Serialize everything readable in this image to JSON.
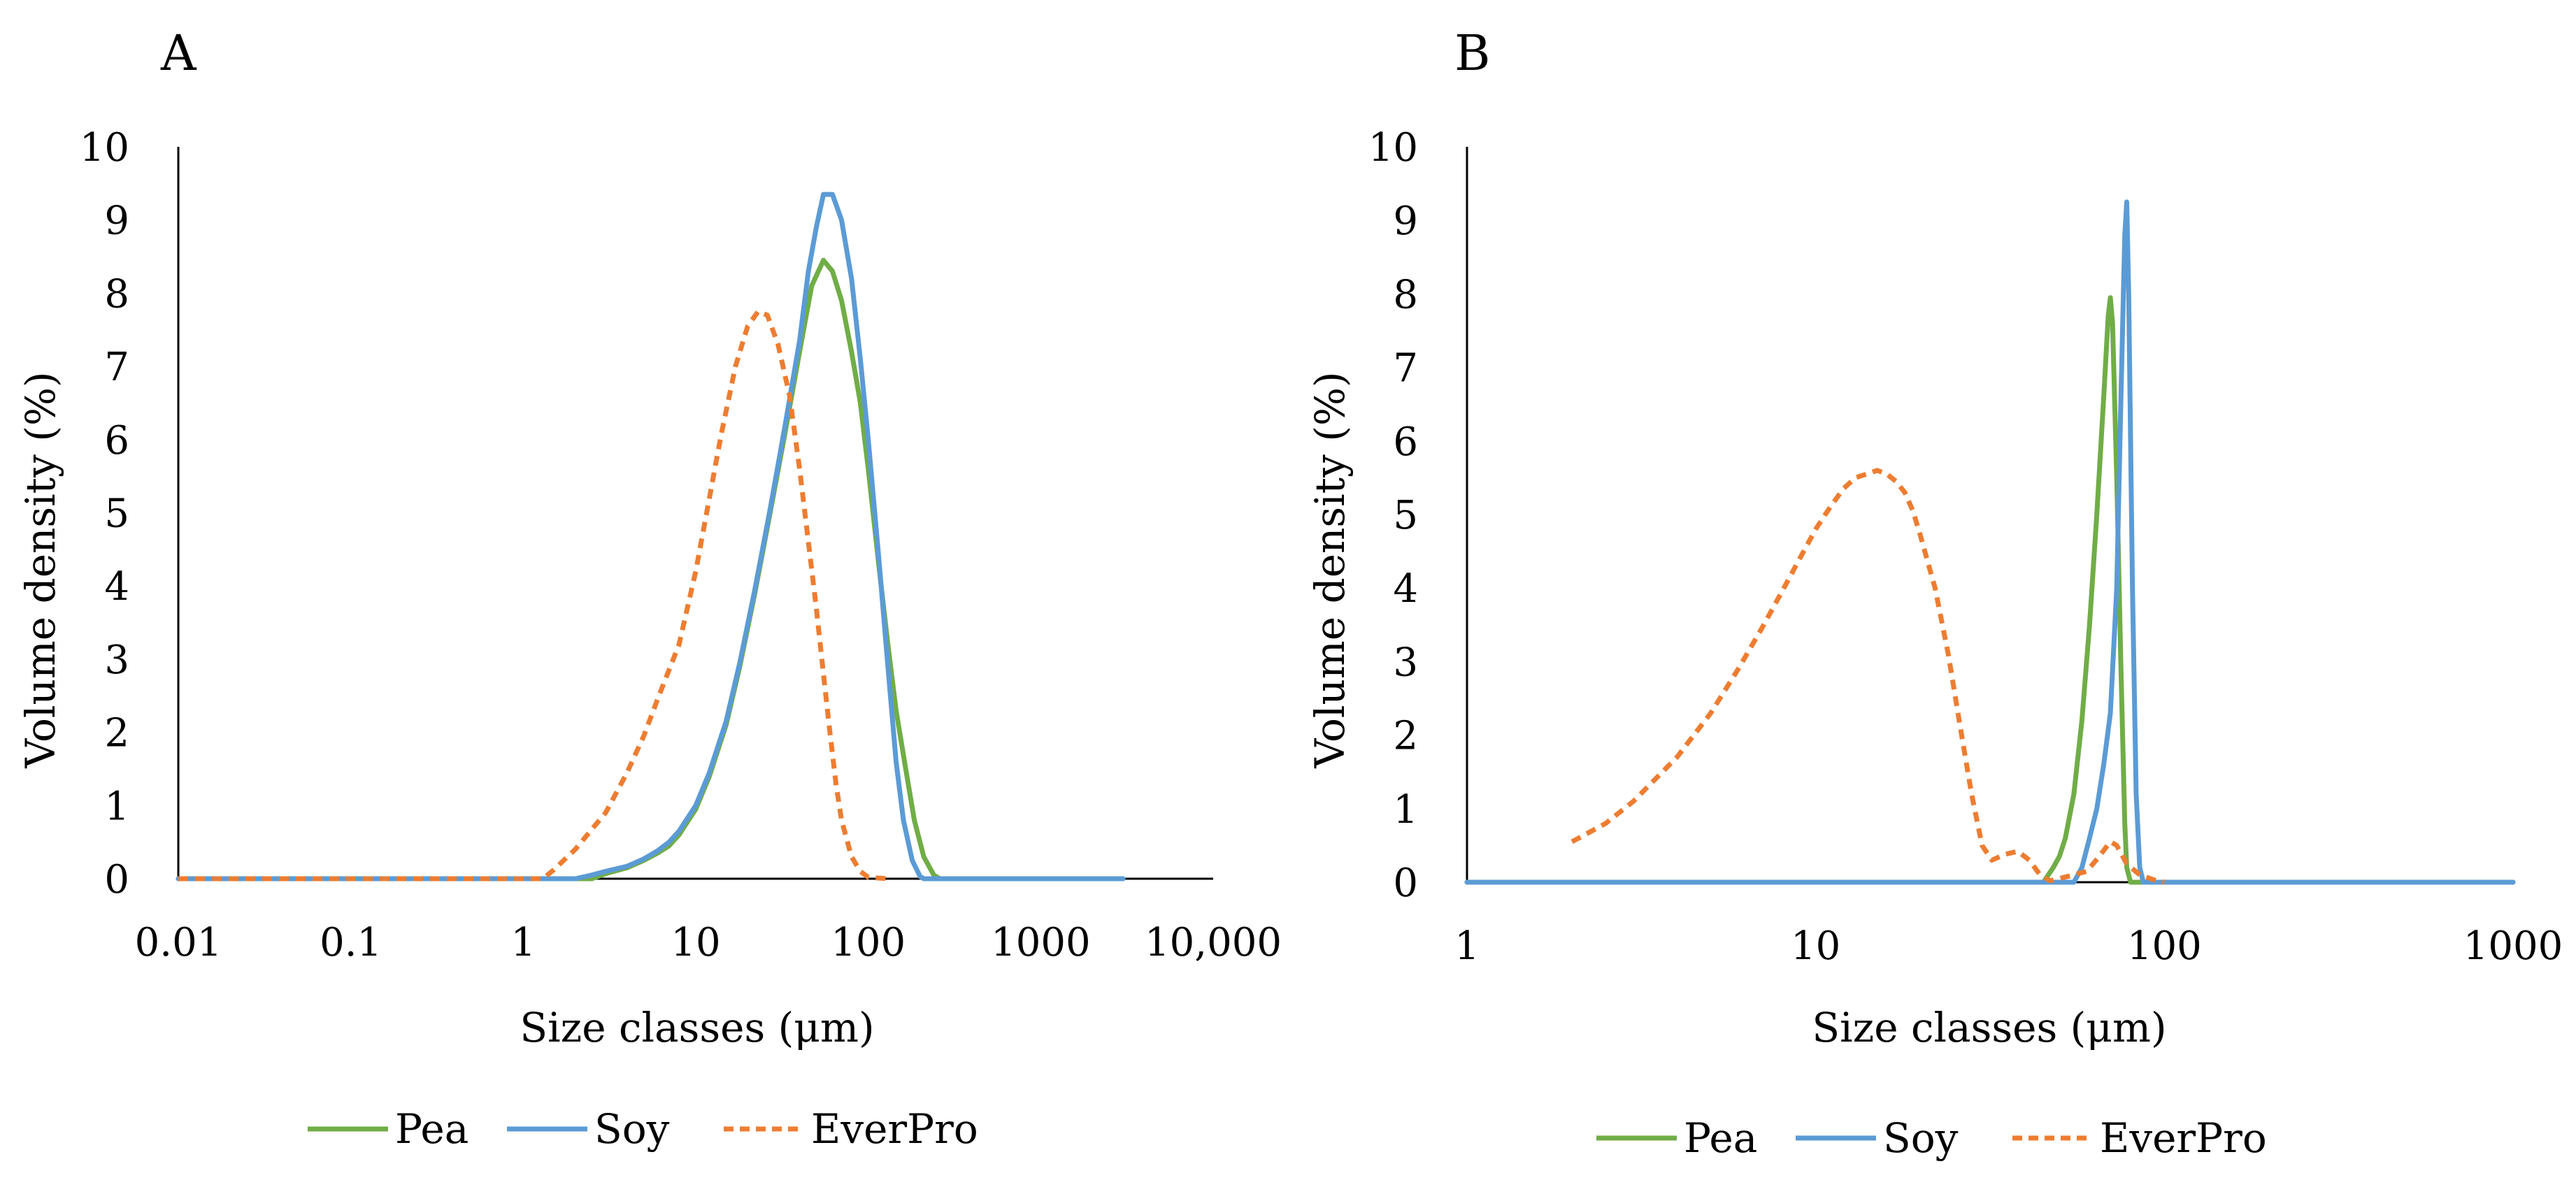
{
  "colors": {
    "pea": "#70AD47",
    "soy": "#5B9BD5",
    "everpro": "#ED7D31",
    "axis": "#000000"
  },
  "legend": [
    "Pea",
    "Soy",
    "EverPro"
  ],
  "chart_data": [
    {
      "panel": "A",
      "type": "line",
      "xscale": "log",
      "xlim": [
        0.01,
        10000
      ],
      "ylim": [
        0,
        10
      ],
      "xticks": [
        "0.01",
        "0.1",
        "1",
        "10",
        "100",
        "1000",
        "10,000"
      ],
      "yticks": [
        "0",
        "1",
        "2",
        "3",
        "4",
        "5",
        "6",
        "7",
        "8",
        "9",
        "10"
      ],
      "xlabel": "Size classes (μm)",
      "ylabel": "Volume density (%)",
      "series": [
        {
          "name": "Pea",
          "style": "solid",
          "points": [
            [
              0.01,
              0
            ],
            [
              2.5,
              0
            ],
            [
              3,
              0.07
            ],
            [
              4,
              0.15
            ],
            [
              5,
              0.25
            ],
            [
              6,
              0.35
            ],
            [
              7,
              0.45
            ],
            [
              8,
              0.6
            ],
            [
              10,
              0.95
            ],
            [
              12,
              1.4
            ],
            [
              15,
              2.1
            ],
            [
              18,
              2.9
            ],
            [
              22,
              3.9
            ],
            [
              27,
              5.0
            ],
            [
              33,
              6.1
            ],
            [
              40,
              7.2
            ],
            [
              47,
              8.1
            ],
            [
              55,
              8.45
            ],
            [
              62,
              8.3
            ],
            [
              70,
              7.9
            ],
            [
              80,
              7.2
            ],
            [
              90,
              6.5
            ],
            [
              100,
              5.6
            ],
            [
              115,
              4.3
            ],
            [
              130,
              3.2
            ],
            [
              145,
              2.3
            ],
            [
              165,
              1.5
            ],
            [
              185,
              0.8
            ],
            [
              210,
              0.3
            ],
            [
              240,
              0.05
            ],
            [
              260,
              0
            ],
            [
              3000,
              0
            ]
          ]
        },
        {
          "name": "Soy",
          "style": "solid",
          "points": [
            [
              0.01,
              0
            ],
            [
              2,
              0
            ],
            [
              2.5,
              0.05
            ],
            [
              3,
              0.1
            ],
            [
              4,
              0.17
            ],
            [
              5,
              0.27
            ],
            [
              6,
              0.38
            ],
            [
              7,
              0.5
            ],
            [
              8,
              0.65
            ],
            [
              10,
              1.0
            ],
            [
              12,
              1.45
            ],
            [
              15,
              2.15
            ],
            [
              18,
              2.95
            ],
            [
              22,
              3.95
            ],
            [
              27,
              5.05
            ],
            [
              33,
              6.2
            ],
            [
              40,
              7.35
            ],
            [
              45,
              8.3
            ],
            [
              50,
              8.9
            ],
            [
              55,
              9.35
            ],
            [
              62,
              9.35
            ],
            [
              70,
              9.0
            ],
            [
              80,
              8.2
            ],
            [
              90,
              7.1
            ],
            [
              100,
              6.0
            ],
            [
              115,
              4.4
            ],
            [
              130,
              2.9
            ],
            [
              145,
              1.6
            ],
            [
              160,
              0.8
            ],
            [
              180,
              0.25
            ],
            [
              200,
              0.03
            ],
            [
              210,
              0
            ],
            [
              3000,
              0
            ]
          ]
        },
        {
          "name": "EverPro",
          "style": "dashed",
          "points": [
            [
              0.01,
              0
            ],
            [
              1.3,
              0
            ],
            [
              1.5,
              0.12
            ],
            [
              2,
              0.4
            ],
            [
              3,
              0.9
            ],
            [
              4,
              1.45
            ],
            [
              5,
              1.95
            ],
            [
              6,
              2.45
            ],
            [
              8,
              3.2
            ],
            [
              10,
              4.2
            ],
            [
              12,
              5.2
            ],
            [
              14,
              6.05
            ],
            [
              17,
              7.0
            ],
            [
              20,
              7.55
            ],
            [
              23,
              7.75
            ],
            [
              26,
              7.7
            ],
            [
              30,
              7.3
            ],
            [
              35,
              6.6
            ],
            [
              40,
              5.6
            ],
            [
              45,
              4.6
            ],
            [
              50,
              3.7
            ],
            [
              55,
              2.8
            ],
            [
              60,
              2.0
            ],
            [
              65,
              1.3
            ],
            [
              70,
              0.8
            ],
            [
              80,
              0.3
            ],
            [
              90,
              0.1
            ],
            [
              100,
              0.02
            ],
            [
              130,
              0
            ]
          ]
        }
      ]
    },
    {
      "panel": "B",
      "type": "line",
      "xscale": "log",
      "xlim": [
        1,
        1000
      ],
      "ylim": [
        0,
        10
      ],
      "xticks": [
        "1",
        "10",
        "100",
        "1000"
      ],
      "yticks": [
        "0",
        "1",
        "2",
        "3",
        "4",
        "5",
        "6",
        "7",
        "8",
        "9",
        "10"
      ],
      "xlabel": "Size classes (μm)",
      "ylabel": "Volume density (%)",
      "series": [
        {
          "name": "Pea",
          "style": "solid",
          "points": [
            [
              1,
              0
            ],
            [
              45,
              0
            ],
            [
              48,
              0.2
            ],
            [
              50,
              0.35
            ],
            [
              52,
              0.6
            ],
            [
              55,
              1.2
            ],
            [
              58,
              2.2
            ],
            [
              61,
              3.5
            ],
            [
              64,
              5.0
            ],
            [
              67,
              6.6
            ],
            [
              69,
              7.7
            ],
            [
              70,
              7.95
            ],
            [
              71,
              7.6
            ],
            [
              73,
              5.5
            ],
            [
              75,
              3.0
            ],
            [
              77,
              0.8
            ],
            [
              78,
              0.2
            ],
            [
              80,
              0
            ],
            [
              1000,
              0
            ]
          ]
        },
        {
          "name": "Soy",
          "style": "solid",
          "points": [
            [
              1,
              0
            ],
            [
              55,
              0
            ],
            [
              58,
              0.2
            ],
            [
              61,
              0.6
            ],
            [
              64,
              1.0
            ],
            [
              67,
              1.6
            ],
            [
              70,
              2.3
            ],
            [
              73,
              4.0
            ],
            [
              75,
              6.5
            ],
            [
              77,
              8.8
            ],
            [
              78,
              9.25
            ],
            [
              79,
              8.0
            ],
            [
              81,
              4.0
            ],
            [
              83,
              1.2
            ],
            [
              85,
              0.2
            ],
            [
              87,
              0
            ],
            [
              1000,
              0
            ]
          ]
        },
        {
          "name": "EverPro",
          "style": "dashed",
          "points": [
            [
              2,
              0.55
            ],
            [
              2.5,
              0.8
            ],
            [
              3,
              1.1
            ],
            [
              4,
              1.7
            ],
            [
              5,
              2.3
            ],
            [
              6,
              2.9
            ],
            [
              7,
              3.45
            ],
            [
              8,
              3.95
            ],
            [
              9,
              4.4
            ],
            [
              10,
              4.8
            ],
            [
              11,
              5.1
            ],
            [
              12,
              5.35
            ],
            [
              13,
              5.5
            ],
            [
              14,
              5.55
            ],
            [
              15,
              5.6
            ],
            [
              16,
              5.55
            ],
            [
              17,
              5.45
            ],
            [
              18,
              5.3
            ],
            [
              19,
              5.05
            ],
            [
              20,
              4.7
            ],
            [
              22,
              4.0
            ],
            [
              24,
              3.1
            ],
            [
              26,
              2.1
            ],
            [
              28,
              1.2
            ],
            [
              30,
              0.5
            ],
            [
              32,
              0.3
            ],
            [
              35,
              0.38
            ],
            [
              38,
              0.42
            ],
            [
              41,
              0.3
            ],
            [
              44,
              0.1
            ],
            [
              47,
              0.02
            ],
            [
              50,
              0.05
            ],
            [
              55,
              0.1
            ],
            [
              60,
              0.15
            ],
            [
              65,
              0.35
            ],
            [
              70,
              0.55
            ],
            [
              73,
              0.5
            ],
            [
              78,
              0.25
            ],
            [
              85,
              0.1
            ],
            [
              95,
              0.02
            ],
            [
              100,
              0
            ]
          ]
        }
      ]
    }
  ]
}
